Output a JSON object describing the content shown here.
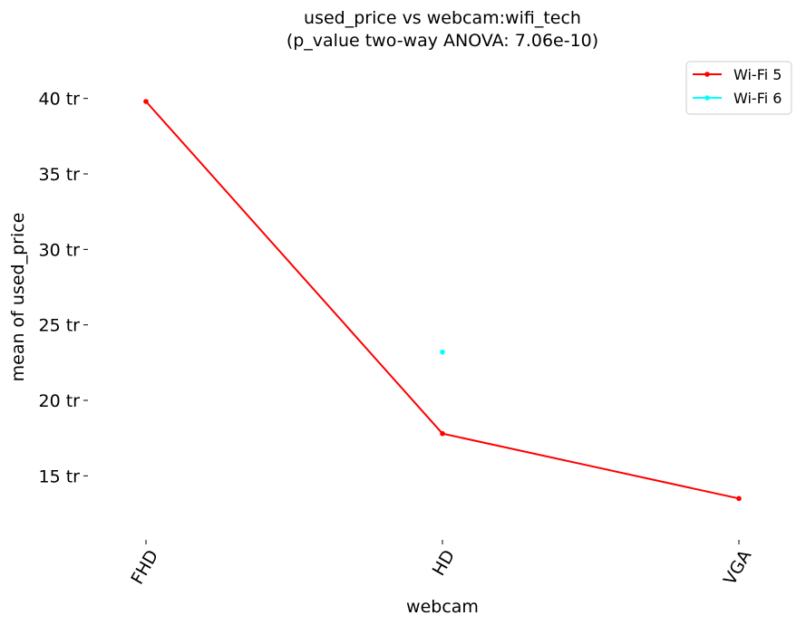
{
  "chart_data": {
    "type": "line",
    "title_line1": "used_price vs webcam:wifi_tech",
    "title_line2": "(p_value two-way ANOVA: 7.06e-10)",
    "xlabel": "webcam",
    "ylabel": "mean of used_price",
    "categories": [
      "FHD",
      "HD",
      "VGA"
    ],
    "y_ticks": [
      {
        "value": 15,
        "label": "15 tr"
      },
      {
        "value": 20,
        "label": "20 tr"
      },
      {
        "value": 25,
        "label": "25 tr"
      },
      {
        "value": 30,
        "label": "30 tr"
      },
      {
        "value": 35,
        "label": "35 tr"
      },
      {
        "value": 40,
        "label": "40 tr"
      }
    ],
    "ylim": [
      11.0,
      42.2
    ],
    "grid": false,
    "legend_position": "top-right",
    "series": [
      {
        "name": "Wi-Fi 5",
        "color": "#ff0000",
        "values": [
          39.8,
          17.8,
          13.5
        ]
      },
      {
        "name": "Wi-Fi 6",
        "color": "#00ffff",
        "values": [
          null,
          23.2,
          null
        ]
      }
    ]
  }
}
